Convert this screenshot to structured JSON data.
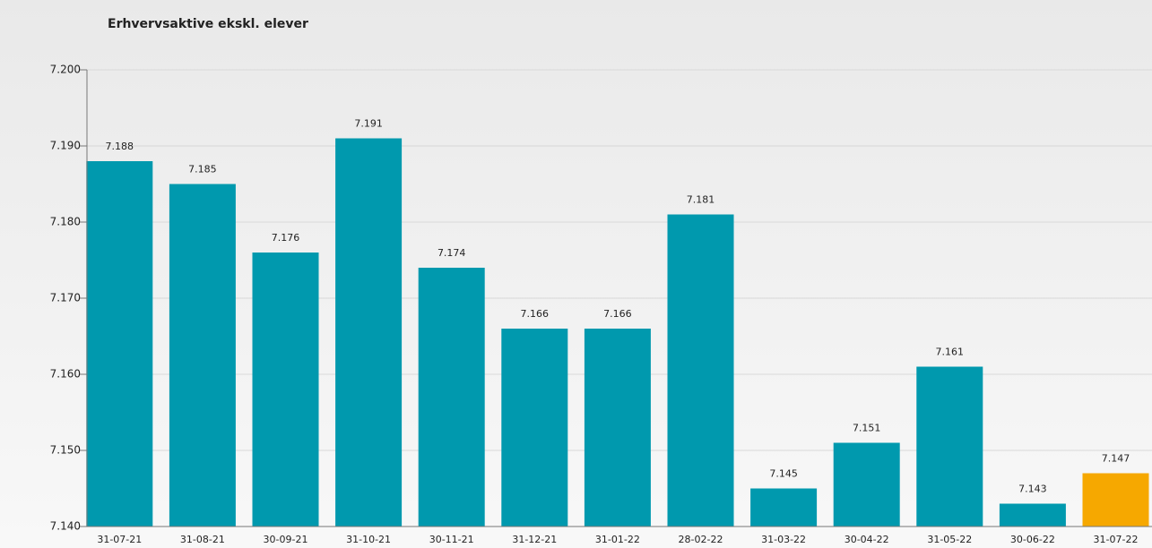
{
  "chart_data": {
    "type": "bar",
    "title": "Erhvervsaktive ekskl. elever",
    "categories": [
      "31-07-21",
      "31-08-21",
      "30-09-21",
      "31-10-21",
      "30-11-21",
      "31-12-21",
      "31-01-22",
      "28-02-22",
      "31-03-22",
      "30-04-22",
      "31-05-22",
      "30-06-22",
      "31-07-22"
    ],
    "values": [
      7188,
      7185,
      7176,
      7191,
      7174,
      7166,
      7166,
      7181,
      7145,
      7151,
      7161,
      7143,
      7147
    ],
    "value_labels": [
      "7.188",
      "7.185",
      "7.176",
      "7.191",
      "7.174",
      "7.166",
      "7.166",
      "7.181",
      "7.145",
      "7.151",
      "7.161",
      "7.143",
      "7.147"
    ],
    "colors": [
      "#0099ae",
      "#0099ae",
      "#0099ae",
      "#0099ae",
      "#0099ae",
      "#0099ae",
      "#0099ae",
      "#0099ae",
      "#0099ae",
      "#0099ae",
      "#0099ae",
      "#0099ae",
      "#f6a800"
    ],
    "ylim": [
      7140,
      7200
    ],
    "yticks": [
      {
        "value": 7140,
        "label": "7.140"
      },
      {
        "value": 7150,
        "label": "7.150"
      },
      {
        "value": 7160,
        "label": "7.160"
      },
      {
        "value": 7170,
        "label": "7.170"
      },
      {
        "value": 7180,
        "label": "7.180"
      },
      {
        "value": 7190,
        "label": "7.190"
      },
      {
        "value": 7200,
        "label": "7.200"
      }
    ],
    "grid": true
  }
}
